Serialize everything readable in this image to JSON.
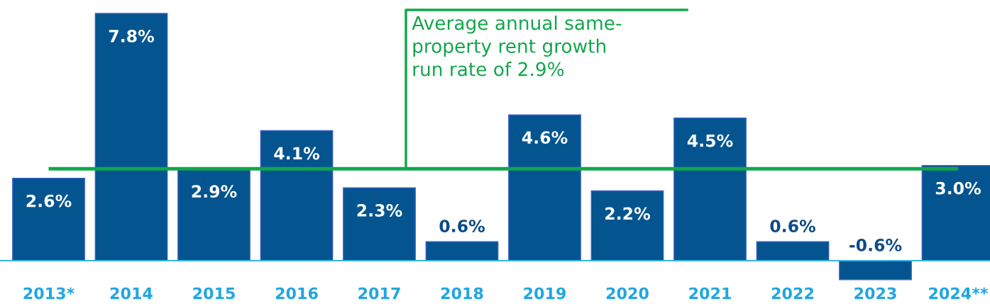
{
  "chart_data": {
    "type": "bar",
    "categories": [
      "2013*",
      "2014",
      "2015",
      "2016",
      "2017",
      "2018",
      "2019",
      "2020",
      "2021",
      "2022",
      "2023",
      "2024**"
    ],
    "values": [
      2.6,
      7.8,
      2.9,
      4.1,
      2.3,
      0.6,
      4.6,
      2.2,
      4.5,
      0.6,
      -0.6,
      3.0
    ],
    "value_labels": [
      "2.6%",
      "7.8%",
      "2.9%",
      "4.1%",
      "2.3%",
      "0.6%",
      "4.6%",
      "2.2%",
      "4.5%",
      "0.6%",
      "-0.6%",
      "3.0%"
    ],
    "color": "#04558f",
    "ref_lines": [
      {
        "axis": "y",
        "value": 2.9,
        "label": "Average annual same-\nproperty rent growth\nrun rate of 2.9%",
        "color": "#12a64b",
        "line_style": "solid"
      }
    ],
    "legend": false
  }
}
